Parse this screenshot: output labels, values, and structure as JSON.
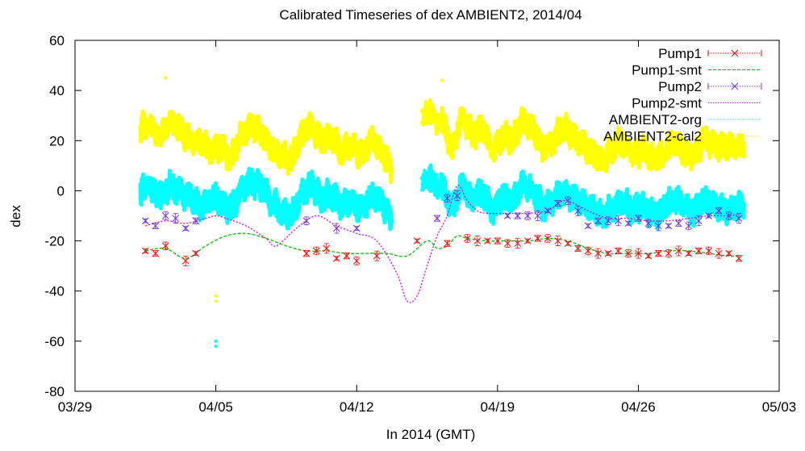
{
  "chart_data": {
    "type": "line",
    "title": "Calibrated Timeseries of dex AMBIENT2, 2014/04",
    "xlabel": "In 2014 (GMT)",
    "ylabel": "dex",
    "x_type": "date",
    "xlim": [
      "2014-03-29",
      "2014-05-03"
    ],
    "ylim": [
      -80,
      60
    ],
    "x_ticks": [
      "03/29",
      "04/05",
      "04/12",
      "04/19",
      "04/26",
      "05/03"
    ],
    "y_ticks": [
      "60",
      "40",
      "20",
      "0",
      "-20",
      "-40",
      "-60",
      "-80"
    ],
    "legend_position": "top-right",
    "grid": false,
    "series": [
      {
        "name": "Pump1",
        "color": "#ff0000",
        "marker": "x",
        "style": "points-errorbars",
        "x": [
          "2014-04-01 12:00",
          "2014-04-02 00:00",
          "2014-04-02 12:00",
          "2014-04-03 12:00",
          "2014-04-04 00:00",
          "2014-04-09 12:00",
          "2014-04-10 00:00",
          "2014-04-10 12:00",
          "2014-04-11 00:00",
          "2014-04-11 12:00",
          "2014-04-12 00:00",
          "2014-04-13 00:00",
          "2014-04-15 00:00",
          "2014-04-16 12:00",
          "2014-04-17 12:00",
          "2014-04-18 00:00",
          "2014-04-18 12:00",
          "2014-04-19 00:00",
          "2014-04-19 12:00",
          "2014-04-20 00:00",
          "2014-04-20 12:00",
          "2014-04-21 00:00",
          "2014-04-21 12:00",
          "2014-04-22 00:00",
          "2014-04-22 12:00",
          "2014-04-23 00:00",
          "2014-04-23 12:00",
          "2014-04-24 00:00",
          "2014-04-24 12:00",
          "2014-04-25 00:00",
          "2014-04-25 12:00",
          "2014-04-26 00:00",
          "2014-04-26 12:00",
          "2014-04-27 00:00",
          "2014-04-27 12:00",
          "2014-04-28 00:00",
          "2014-04-28 12:00",
          "2014-04-29 00:00",
          "2014-04-29 12:00",
          "2014-04-30 00:00",
          "2014-04-30 12:00",
          "2014-05-01 00:00"
        ],
        "values": [
          -24,
          -25,
          -22,
          -28,
          -25,
          -25,
          -24,
          -23,
          -27,
          -26,
          -28,
          -26,
          -20,
          -21,
          -19,
          -20,
          -20,
          -20,
          -21,
          -21,
          -20,
          -19,
          -19,
          -20,
          -21,
          -23,
          -24,
          -25,
          -25,
          -24,
          -25,
          -25,
          -26,
          -25,
          -25,
          -24,
          -25,
          -24,
          -24,
          -25,
          -25,
          -27
        ]
      },
      {
        "name": "Pump1-smt",
        "color": "#00c000",
        "style": "dashed-line",
        "x": [
          "2014-04-01 12:00",
          "2014-04-02 12:00",
          "2014-04-03 12:00",
          "2014-04-04 12:00",
          "2014-04-05 12:00",
          "2014-04-06 12:00",
          "2014-04-07 12:00",
          "2014-04-08 12:00",
          "2014-04-09 12:00",
          "2014-04-10 12:00",
          "2014-04-11 12:00",
          "2014-04-12 12:00",
          "2014-04-13 12:00",
          "2014-04-14 12:00",
          "2014-04-15 12:00",
          "2014-04-16 00:00",
          "2014-04-16 12:00",
          "2014-04-17 00:00",
          "2014-04-17 12:00",
          "2014-04-18 12:00",
          "2014-04-19 12:00",
          "2014-04-20 12:00",
          "2014-04-21 12:00",
          "2014-04-22 12:00",
          "2014-04-23 12:00",
          "2014-04-24 12:00",
          "2014-04-25 12:00",
          "2014-04-26 12:00",
          "2014-04-27 12:00",
          "2014-04-28 12:00",
          "2014-04-29 12:00",
          "2014-04-30 12:00",
          "2014-05-01 00:00"
        ],
        "values": [
          -24,
          -23,
          -27,
          -22,
          -18,
          -17,
          -19,
          -22,
          -24,
          -24,
          -25,
          -25,
          -25,
          -26,
          -20,
          -23,
          -22,
          -18,
          -19,
          -20,
          -20,
          -20,
          -19,
          -20,
          -23,
          -25,
          -25,
          -25,
          -24,
          -24,
          -25,
          -26,
          -26
        ]
      },
      {
        "name": "Pump2",
        "color": "#7030e0",
        "marker": "x",
        "style": "points-errorbars",
        "x": [
          "2014-04-01 12:00",
          "2014-04-02 00:00",
          "2014-04-02 12:00",
          "2014-04-03 00:00",
          "2014-04-03 12:00",
          "2014-04-04 00:00",
          "2014-04-09 12:00",
          "2014-04-11 00:00",
          "2014-04-12 00:00",
          "2014-04-16 00:00",
          "2014-04-16 12:00",
          "2014-04-17 00:00",
          "2014-04-19 12:00",
          "2014-04-20 00:00",
          "2014-04-20 12:00",
          "2014-04-21 00:00",
          "2014-04-21 12:00",
          "2014-04-22 00:00",
          "2014-04-22 12:00",
          "2014-04-23 00:00",
          "2014-04-23 12:00",
          "2014-04-24 00:00",
          "2014-04-24 12:00",
          "2014-04-25 00:00",
          "2014-04-25 12:00",
          "2014-04-26 00:00",
          "2014-04-26 12:00",
          "2014-04-27 00:00",
          "2014-04-27 12:00",
          "2014-04-28 00:00",
          "2014-04-28 12:00",
          "2014-04-29 00:00",
          "2014-04-29 12:00",
          "2014-04-30 00:00",
          "2014-04-30 12:00",
          "2014-05-01 00:00"
        ],
        "values": [
          -12,
          -14,
          -10,
          -11,
          -15,
          -12,
          -12,
          -15,
          -15,
          -11,
          -3,
          -2,
          -10,
          -10,
          -10,
          -10,
          -8,
          -5,
          -4,
          -8,
          -14,
          -12,
          -12,
          -12,
          -13,
          -11,
          -13,
          -14,
          -14,
          -13,
          -14,
          -12,
          -10,
          -8,
          -10,
          -11
        ]
      },
      {
        "name": "Pump2-smt",
        "color": "#e000e0",
        "style": "dotted-line",
        "x": [
          "2014-04-01 12:00",
          "2014-04-02 12:00",
          "2014-04-03 12:00",
          "2014-04-04 12:00",
          "2014-04-05 00:00",
          "2014-04-05 12:00",
          "2014-04-06 12:00",
          "2014-04-07 12:00",
          "2014-04-08 00:00",
          "2014-04-09 00:00",
          "2014-04-10 00:00",
          "2014-04-11 00:00",
          "2014-04-12 00:00",
          "2014-04-13 00:00",
          "2014-04-14 00:00",
          "2014-04-14 12:00",
          "2014-04-15 00:00",
          "2014-04-15 12:00",
          "2014-04-16 00:00",
          "2014-04-16 12:00",
          "2014-04-17 00:00",
          "2014-04-17 12:00",
          "2014-04-18 00:00",
          "2014-04-18 12:00",
          "2014-04-19 12:00",
          "2014-04-20 12:00",
          "2014-04-21 12:00",
          "2014-04-22 00:00",
          "2014-04-22 12:00",
          "2014-04-23 12:00",
          "2014-04-24 12:00",
          "2014-04-25 12:00",
          "2014-04-26 12:00",
          "2014-04-27 12:00",
          "2014-04-28 12:00",
          "2014-04-29 12:00",
          "2014-04-30 12:00",
          "2014-05-01 00:00"
        ],
        "values": [
          -14,
          -12,
          -13,
          -11,
          -10,
          -11,
          -14,
          -19,
          -22,
          -15,
          -10,
          -14,
          -17,
          -20,
          -33,
          -44,
          -42,
          -30,
          -18,
          -10,
          2,
          -4,
          -8,
          -9,
          -9,
          -9,
          -8,
          -5,
          -4,
          -8,
          -11,
          -11,
          -12,
          -12,
          -11,
          -10,
          -10,
          -9
        ]
      },
      {
        "name": "AMBIENT2-org",
        "color": "#00ffff",
        "style": "noisy-band",
        "x": [
          "2014-04-01 06:00",
          "2014-04-01 12:00",
          "2014-04-02 06:00",
          "2014-04-02 18:00",
          "2014-04-03 06:00",
          "2014-04-03 18:00",
          "2014-04-04 06:00",
          "2014-04-04 18:00",
          "2014-04-05 06:00",
          "2014-04-05 18:00",
          "2014-04-06 06:00",
          "2014-04-06 18:00",
          "2014-04-07 06:00",
          "2014-04-07 18:00",
          "2014-04-08 06:00",
          "2014-04-08 18:00",
          "2014-04-09 06:00",
          "2014-04-09 18:00",
          "2014-04-10 06:00",
          "2014-04-10 18:00",
          "2014-04-11 06:00",
          "2014-04-11 18:00",
          "2014-04-12 06:00",
          "2014-04-12 18:00",
          "2014-04-13 06:00",
          "2014-04-13 18:00",
          "2014-04-15 06:00",
          "2014-04-16 06:00",
          "2014-04-16 18:00",
          "2014-04-17 06:00",
          "2014-04-17 18:00",
          "2014-04-18 06:00",
          "2014-04-18 18:00",
          "2014-04-19 06:00",
          "2014-04-19 18:00",
          "2014-04-20 06:00",
          "2014-04-20 18:00",
          "2014-04-21 06:00",
          "2014-04-21 18:00",
          "2014-04-22 06:00",
          "2014-04-22 18:00",
          "2014-04-23 06:00",
          "2014-04-23 18:00",
          "2014-04-24 06:00",
          "2014-04-24 18:00",
          "2014-04-25 06:00",
          "2014-04-25 18:00",
          "2014-04-26 06:00",
          "2014-04-26 18:00",
          "2014-04-27 06:00",
          "2014-04-27 18:00",
          "2014-04-28 06:00",
          "2014-04-28 18:00",
          "2014-04-29 06:00",
          "2014-04-29 18:00",
          "2014-04-30 06:00",
          "2014-04-30 18:00",
          "2014-05-01 06:00"
        ],
        "values": [
          0,
          2,
          -2,
          2,
          -1,
          -3,
          -6,
          -2,
          -4,
          -8,
          0,
          3,
          2,
          -4,
          -8,
          -10,
          -2,
          2,
          -3,
          -1,
          -6,
          -4,
          -8,
          -2,
          -5,
          -12,
          5,
          2,
          -8,
          2,
          -4,
          0,
          -8,
          -2,
          -4,
          2,
          0,
          -6,
          -4,
          0,
          -3,
          -6,
          -8,
          -10,
          -6,
          -4,
          -8,
          -6,
          -10,
          -8,
          -2,
          -6,
          -8,
          -4,
          -6,
          -8,
          -7,
          -6
        ]
      },
      {
        "name": "AMBIENT2-cal2",
        "color": "#ffff00",
        "style": "noisy-band",
        "x": [
          "2014-04-01 06:00",
          "2014-04-01 12:00",
          "2014-04-02 06:00",
          "2014-04-02 18:00",
          "2014-04-03 06:00",
          "2014-04-03 18:00",
          "2014-04-04 06:00",
          "2014-04-04 18:00",
          "2014-04-05 06:00",
          "2014-04-05 18:00",
          "2014-04-06 06:00",
          "2014-04-06 18:00",
          "2014-04-07 06:00",
          "2014-04-07 18:00",
          "2014-04-08 06:00",
          "2014-04-08 18:00",
          "2014-04-09 06:00",
          "2014-04-09 18:00",
          "2014-04-10 06:00",
          "2014-04-10 18:00",
          "2014-04-11 06:00",
          "2014-04-11 18:00",
          "2014-04-12 06:00",
          "2014-04-12 18:00",
          "2014-04-13 06:00",
          "2014-04-13 18:00",
          "2014-04-15 06:00",
          "2014-04-16 06:00",
          "2014-04-16 18:00",
          "2014-04-17 06:00",
          "2014-04-17 18:00",
          "2014-04-18 06:00",
          "2014-04-18 18:00",
          "2014-04-19 06:00",
          "2014-04-19 18:00",
          "2014-04-20 06:00",
          "2014-04-20 18:00",
          "2014-04-21 06:00",
          "2014-04-21 18:00",
          "2014-04-22 06:00",
          "2014-04-22 18:00",
          "2014-04-23 06:00",
          "2014-04-23 18:00",
          "2014-04-24 06:00",
          "2014-04-24 18:00",
          "2014-04-25 06:00",
          "2014-04-25 18:00",
          "2014-04-26 06:00",
          "2014-04-26 18:00",
          "2014-04-27 06:00",
          "2014-04-27 18:00",
          "2014-04-28 06:00",
          "2014-04-28 18:00",
          "2014-04-29 06:00",
          "2014-04-29 18:00",
          "2014-04-30 06:00",
          "2014-04-30 18:00",
          "2014-05-01 06:00"
        ],
        "values": [
          25,
          27,
          22,
          28,
          24,
          20,
          20,
          16,
          18,
          12,
          22,
          26,
          24,
          18,
          14,
          12,
          22,
          26,
          20,
          22,
          16,
          18,
          14,
          20,
          16,
          8,
          32,
          28,
          16,
          30,
          22,
          26,
          16,
          22,
          20,
          28,
          24,
          18,
          20,
          26,
          22,
          18,
          14,
          12,
          18,
          20,
          14,
          16,
          12,
          14,
          20,
          16,
          14,
          20,
          18,
          17,
          18,
          18
        ]
      }
    ]
  }
}
